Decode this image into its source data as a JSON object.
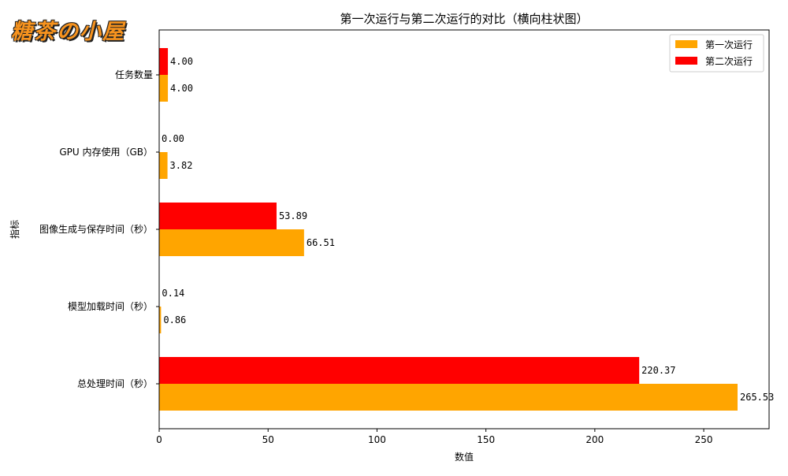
{
  "logo_text": "糖茶の小屋",
  "colors": {
    "first": "#FFA500",
    "second": "#FF0000"
  },
  "chart_data": {
    "type": "bar",
    "orientation": "horizontal",
    "title": "第一次运行与第二次运行的对比（横向柱状图）",
    "xlabel": "数值",
    "ylabel": "指标",
    "xlim": [
      0,
      280
    ],
    "xticks": [
      0,
      50,
      100,
      150,
      200,
      250
    ],
    "grid": false,
    "legend_position": "top-right",
    "categories": [
      "总处理时间（秒）",
      "模型加载时间（秒）",
      "图像生成与保存时间（秒）",
      "GPU 内存使用（GB）",
      "任务数量"
    ],
    "series": [
      {
        "name": "第一次运行",
        "values": [
          265.53,
          0.86,
          66.51,
          3.82,
          4.0
        ],
        "labels": [
          "265.53",
          "0.86",
          "66.51",
          "3.82",
          "4.00"
        ]
      },
      {
        "name": "第二次运行",
        "values": [
          220.37,
          0.14,
          53.89,
          0.0,
          4.0
        ],
        "labels": [
          "220.37",
          "0.14",
          "53.89",
          "0.00",
          "4.00"
        ]
      }
    ]
  }
}
